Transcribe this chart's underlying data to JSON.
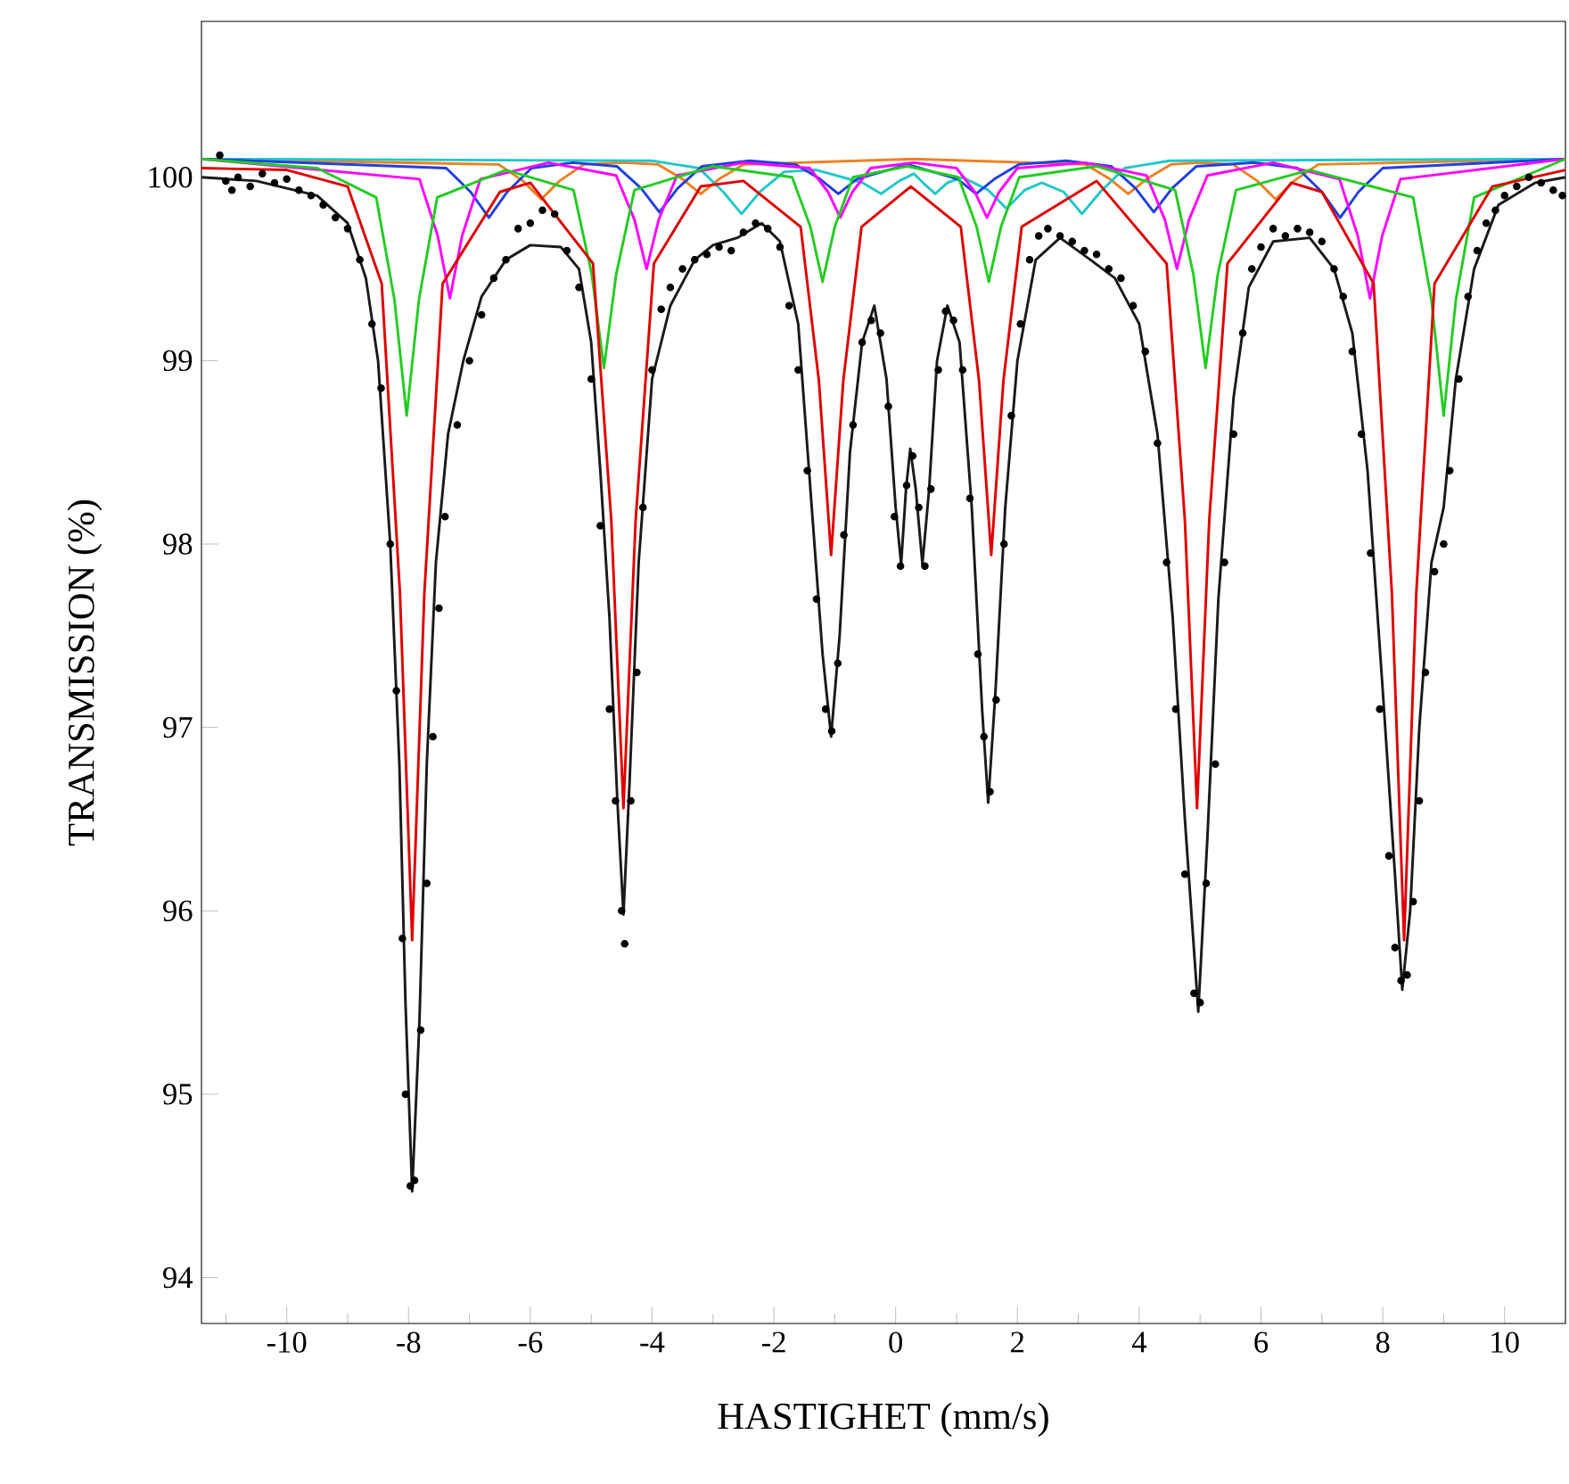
{
  "chart_data": {
    "type": "line",
    "xlabel": "HASTIGHET (mm/s)",
    "ylabel": "TRANSMISSION (%)",
    "xlim": [
      -11.4,
      11
    ],
    "ylim": [
      93.75,
      100.85
    ],
    "xticks": [
      -10,
      {
        "value": -11,
        "label": null
      },
      -8,
      {
        "value": -9,
        "label": null
      },
      -6,
      {
        "value": -7,
        "label": null
      },
      -4,
      {
        "value": -5,
        "label": null
      },
      -2,
      {
        "value": -3,
        "label": null
      },
      0,
      {
        "value": -1,
        "label": null
      },
      2,
      {
        "value": 1,
        "label": null
      },
      4,
      {
        "value": 3,
        "label": null
      },
      6,
      {
        "value": 5,
        "label": null
      },
      8,
      {
        "value": 7,
        "label": null
      },
      10,
      {
        "value": 9,
        "label": null
      }
    ],
    "yticks": [
      94,
      95,
      96,
      97,
      98,
      99,
      100
    ],
    "series": [
      {
        "color": "#f08020",
        "x": [
          -11.4,
          -6.52,
          -6.12,
          -5.82,
          -5.52,
          -5.12,
          -4.5,
          -3.9,
          -3.5,
          -3.2,
          -2.9,
          -2.5,
          0.3,
          3.12,
          3.52,
          3.82,
          4.12,
          4.52,
          5.0,
          5.54,
          5.94,
          6.24,
          6.54,
          6.94,
          11
        ],
        "values": [
          100.1,
          100.07,
          99.98,
          99.88,
          99.98,
          100.07,
          100.08,
          100.07,
          99.99,
          99.91,
          99.99,
          100.07,
          100.1,
          100.07,
          99.99,
          99.91,
          99.99,
          100.07,
          100.08,
          100.07,
          99.98,
          99.88,
          99.98,
          100.07,
          100.1
        ]
      },
      {
        "color": "#20c8c8",
        "x": [
          -11.4,
          -4,
          -3.23,
          -2.83,
          -2.53,
          -2.23,
          -1.83,
          -1.3,
          -0.54,
          -0.24,
          0.06,
          0.3,
          0.45,
          0.65,
          0.85,
          1.1,
          1.52,
          1.82,
          2.12,
          2.4,
          2.76,
          3.06,
          3.36,
          3.76,
          4.5,
          11
        ],
        "values": [
          100.1,
          100.09,
          100.05,
          99.92,
          99.8,
          99.92,
          100.03,
          100.04,
          99.97,
          99.91,
          99.98,
          100.02,
          99.97,
          99.91,
          99.97,
          100.0,
          99.93,
          99.83,
          99.93,
          99.97,
          99.92,
          99.8,
          99.92,
          100.05,
          100.09,
          100.1
        ]
      },
      {
        "color": "#2040e0",
        "x": [
          -11.4,
          -7.38,
          -6.98,
          -6.68,
          -6.38,
          -5.98,
          -5.3,
          -4.58,
          -4.18,
          -3.88,
          -3.58,
          -3.18,
          -2.4,
          -1.64,
          -1.24,
          -0.94,
          -0.64,
          0.2,
          1.02,
          1.32,
          1.62,
          2.02,
          2.8,
          3.54,
          3.94,
          4.24,
          4.54,
          4.94,
          5.9,
          6.6,
          7.0,
          7.3,
          7.6,
          8.0,
          11
        ],
        "values": [
          100.1,
          100.05,
          99.92,
          99.78,
          99.92,
          100.05,
          100.08,
          100.06,
          99.94,
          99.81,
          99.94,
          100.06,
          100.09,
          100.07,
          99.99,
          99.91,
          99.99,
          100.07,
          99.99,
          99.91,
          99.99,
          100.07,
          100.09,
          100.06,
          99.94,
          99.81,
          99.94,
          100.06,
          100.08,
          100.05,
          99.92,
          99.78,
          99.92,
          100.05,
          100.1
        ]
      },
      {
        "color": "#ff00ff",
        "x": [
          -11.4,
          -7.82,
          -7.52,
          -7.32,
          -7.12,
          -6.82,
          -5.7,
          -4.59,
          -4.29,
          -4.09,
          -3.89,
          -3.59,
          -2.5,
          -1.41,
          -1.11,
          -0.91,
          -0.71,
          -0.41,
          0.3,
          1.0,
          1.3,
          1.5,
          1.7,
          2.0,
          3.1,
          4.12,
          4.42,
          4.62,
          4.82,
          5.12,
          6.2,
          7.29,
          7.59,
          7.79,
          7.99,
          8.29,
          11
        ],
        "values": [
          100.1,
          99.99,
          99.68,
          99.34,
          99.68,
          99.99,
          100.08,
          100.01,
          99.77,
          99.5,
          99.77,
          100.01,
          100.08,
          100.05,
          99.92,
          99.78,
          99.92,
          100.05,
          100.08,
          100.05,
          99.92,
          99.78,
          99.92,
          100.05,
          100.08,
          100.01,
          99.77,
          99.5,
          99.77,
          100.01,
          100.08,
          99.99,
          99.68,
          99.34,
          99.68,
          99.99,
          100.1
        ]
      },
      {
        "color": "#22cc22",
        "x": [
          -11.4,
          -9.5,
          -8.53,
          -8.23,
          -8.03,
          -7.83,
          -7.53,
          -6.4,
          -5.29,
          -4.99,
          -4.79,
          -4.59,
          -4.29,
          -3,
          -1.7,
          -1.4,
          -1.2,
          -1.0,
          -0.7,
          0.2,
          1.03,
          1.33,
          1.53,
          1.73,
          2.03,
          3.3,
          4.59,
          4.89,
          5.09,
          5.29,
          5.59,
          6.8,
          8.5,
          8.8,
          9.0,
          9.2,
          9.5,
          11
        ],
        "values": [
          100.1,
          100.05,
          99.89,
          99.33,
          98.7,
          99.33,
          99.89,
          100.04,
          99.93,
          99.47,
          98.96,
          99.47,
          99.93,
          100.06,
          100.0,
          99.73,
          99.43,
          99.73,
          100.0,
          100.06,
          100.0,
          99.73,
          99.43,
          99.73,
          100.0,
          100.06,
          99.93,
          99.47,
          98.96,
          99.47,
          99.93,
          100.04,
          99.89,
          99.33,
          98.7,
          99.33,
          99.89,
          100.1
        ]
      },
      {
        "color": "#e00000",
        "x": [
          -11.4,
          -10,
          -9,
          -8.44,
          -8.14,
          -7.94,
          -7.74,
          -7.44,
          -6.5,
          -6,
          -4.97,
          -4.67,
          -4.47,
          -4.27,
          -3.97,
          -3.2,
          -2.5,
          -1.56,
          -1.26,
          -1.06,
          -0.86,
          -0.56,
          0.25,
          1.07,
          1.37,
          1.57,
          1.77,
          2.07,
          3.3,
          4.45,
          4.75,
          4.95,
          5.15,
          5.45,
          6.5,
          7.0,
          7.85,
          8.15,
          8.35,
          8.55,
          8.85,
          9.8,
          11
        ],
        "values": [
          100.05,
          100.04,
          99.95,
          99.42,
          97.73,
          95.84,
          97.73,
          99.42,
          99.92,
          99.97,
          99.53,
          98.13,
          96.56,
          98.13,
          99.53,
          99.95,
          99.98,
          99.73,
          98.89,
          97.94,
          98.89,
          99.73,
          99.95,
          99.73,
          98.89,
          97.94,
          98.89,
          99.73,
          99.98,
          99.53,
          98.13,
          96.56,
          98.13,
          99.53,
          99.97,
          99.92,
          99.42,
          97.73,
          95.84,
          97.73,
          99.42,
          99.95,
          100.04
        ]
      },
      {
        "color": "#1a1a1a",
        "x": [
          -11.4,
          -10.5,
          -9.5,
          -9.0,
          -8.7,
          -8.5,
          -8.3,
          -8.15,
          -8.05,
          -7.94,
          -7.82,
          -7.7,
          -7.55,
          -7.35,
          -7.1,
          -6.8,
          -6.4,
          -6.0,
          -5.5,
          -5.2,
          -5.0,
          -4.85,
          -4.7,
          -4.57,
          -4.47,
          -4.37,
          -4.22,
          -4.0,
          -3.7,
          -3.3,
          -3.0,
          -2.6,
          -2.2,
          -1.9,
          -1.6,
          -1.4,
          -1.2,
          -1.06,
          -0.92,
          -0.75,
          -0.55,
          -0.35,
          -0.15,
          0.0,
          0.09,
          0.17,
          0.24,
          0.33,
          0.44,
          0.55,
          0.68,
          0.85,
          1.05,
          1.25,
          1.42,
          1.52,
          1.64,
          1.8,
          2.0,
          2.3,
          2.7,
          3.2,
          3.6,
          4.0,
          4.3,
          4.55,
          4.75,
          4.97,
          5.12,
          5.3,
          5.55,
          5.8,
          6.2,
          6.8,
          7.2,
          7.5,
          7.75,
          8.0,
          8.2,
          8.32,
          8.45,
          8.6,
          8.8,
          9.0,
          9.2,
          9.5,
          9.9,
          10.5,
          11
        ],
        "values": [
          100.0,
          99.98,
          99.9,
          99.75,
          99.45,
          99.0,
          98.0,
          96.8,
          95.5,
          94.47,
          95.4,
          96.8,
          97.9,
          98.6,
          99.0,
          99.35,
          99.55,
          99.63,
          99.62,
          99.5,
          99.1,
          98.4,
          97.6,
          96.6,
          95.98,
          96.7,
          97.9,
          98.9,
          99.3,
          99.55,
          99.63,
          99.67,
          99.75,
          99.65,
          99.2,
          98.3,
          97.4,
          96.95,
          97.5,
          98.5,
          99.1,
          99.3,
          98.9,
          98.2,
          97.89,
          98.3,
          98.52,
          98.3,
          97.89,
          98.3,
          99.0,
          99.3,
          99.1,
          98.2,
          97.1,
          96.59,
          97.2,
          98.2,
          99.0,
          99.55,
          99.67,
          99.55,
          99.45,
          99.2,
          98.6,
          97.6,
          96.5,
          95.45,
          96.4,
          97.7,
          98.8,
          99.4,
          99.65,
          99.67,
          99.5,
          99.15,
          98.4,
          97.2,
          96.2,
          95.57,
          96.0,
          97.0,
          97.9,
          98.2,
          98.9,
          99.5,
          99.85,
          99.97,
          100.0
        ]
      },
      {
        "type": "scatter",
        "marker": "circle",
        "color": "#000000",
        "x": [
          -11.1,
          -11.0,
          -10.9,
          -10.8,
          -10.6,
          -10.4,
          -10.2,
          -10.0,
          -9.8,
          -9.6,
          -9.4,
          -9.2,
          -9.0,
          -8.8,
          -8.6,
          -8.45,
          -8.3,
          -8.2,
          -8.1,
          -8.05,
          -7.97,
          -7.9,
          -7.8,
          -7.7,
          -7.6,
          -7.5,
          -7.4,
          -7.2,
          -7.0,
          -6.8,
          -6.6,
          -6.4,
          -6.2,
          -6.0,
          -5.8,
          -5.6,
          -5.4,
          -5.2,
          -5.0,
          -4.85,
          -4.7,
          -4.6,
          -4.5,
          -4.45,
          -4.35,
          -4.25,
          -4.15,
          -4.0,
          -3.85,
          -3.7,
          -3.5,
          -3.3,
          -3.1,
          -2.9,
          -2.7,
          -2.5,
          -2.3,
          -2.1,
          -1.9,
          -1.75,
          -1.6,
          -1.45,
          -1.3,
          -1.15,
          -1.05,
          -0.95,
          -0.85,
          -0.7,
          -0.55,
          -0.4,
          -0.25,
          -0.12,
          -0.02,
          0.08,
          0.18,
          0.28,
          0.38,
          0.48,
          0.58,
          0.7,
          0.82,
          0.95,
          1.1,
          1.22,
          1.35,
          1.45,
          1.55,
          1.65,
          1.78,
          1.9,
          2.05,
          2.2,
          2.35,
          2.5,
          2.7,
          2.9,
          3.1,
          3.3,
          3.5,
          3.7,
          3.9,
          4.1,
          4.3,
          4.45,
          4.6,
          4.75,
          4.9,
          5.0,
          5.1,
          5.25,
          5.4,
          5.55,
          5.7,
          5.85,
          6.0,
          6.2,
          6.4,
          6.6,
          6.8,
          7.0,
          7.2,
          7.35,
          7.5,
          7.65,
          7.8,
          7.95,
          8.1,
          8.2,
          8.3,
          8.4,
          8.5,
          8.6,
          8.7,
          8.85,
          9.0,
          9.1,
          9.25,
          9.4,
          9.55,
          9.7,
          9.85,
          10.0,
          10.2,
          10.4,
          10.6,
          10.8,
          10.95
        ],
        "values": [
          100.12,
          99.98,
          99.93,
          100.0,
          99.95,
          100.02,
          99.97,
          99.99,
          99.93,
          99.9,
          99.85,
          99.78,
          99.72,
          99.55,
          99.2,
          98.85,
          98.0,
          97.2,
          95.85,
          95.0,
          94.5,
          94.53,
          95.35,
          96.15,
          96.95,
          97.65,
          98.15,
          98.65,
          99.0,
          99.25,
          99.45,
          99.55,
          99.72,
          99.75,
          99.82,
          99.8,
          99.6,
          99.4,
          98.9,
          98.1,
          97.1,
          96.6,
          96.0,
          95.82,
          96.6,
          97.3,
          98.2,
          98.95,
          99.28,
          99.4,
          99.5,
          99.55,
          99.58,
          99.62,
          99.6,
          99.7,
          99.75,
          99.72,
          99.62,
          99.3,
          98.95,
          98.4,
          97.7,
          97.1,
          96.98,
          97.35,
          98.05,
          98.65,
          99.1,
          99.22,
          99.15,
          98.75,
          98.15,
          97.88,
          98.32,
          98.48,
          98.2,
          97.88,
          98.3,
          98.95,
          99.27,
          99.22,
          98.95,
          98.25,
          97.4,
          96.95,
          96.65,
          97.15,
          98.0,
          98.7,
          99.2,
          99.55,
          99.68,
          99.72,
          99.68,
          99.65,
          99.6,
          99.58,
          99.5,
          99.45,
          99.3,
          99.05,
          98.55,
          97.9,
          97.1,
          96.2,
          95.55,
          95.5,
          96.15,
          96.8,
          97.9,
          98.6,
          99.15,
          99.5,
          99.62,
          99.72,
          99.68,
          99.72,
          99.7,
          99.65,
          99.5,
          99.35,
          99.05,
          98.6,
          97.95,
          97.1,
          96.3,
          95.8,
          95.62,
          95.65,
          96.05,
          96.6,
          97.3,
          97.85,
          98.0,
          98.4,
          98.9,
          99.35,
          99.6,
          99.75,
          99.82,
          99.9,
          99.95,
          100.0,
          99.97,
          99.93,
          99.9
        ]
      }
    ]
  }
}
